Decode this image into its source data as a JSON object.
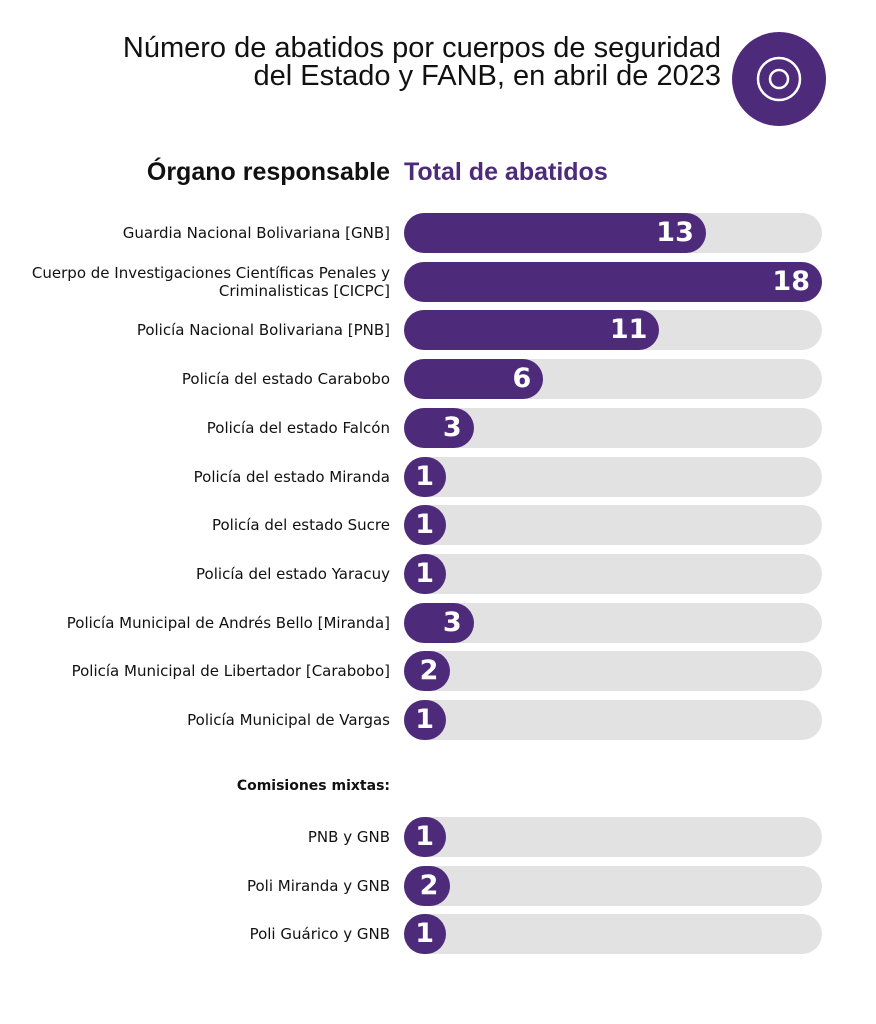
{
  "title": "Número de abatidos por cuerpos de seguridad del Estado y FANB, en abril de 2023",
  "icon": "target-circle-icon",
  "colors": {
    "bar": "#4e2a7b",
    "track": "#e2e2e2"
  },
  "chart_data": {
    "type": "bar",
    "orientation": "horizontal",
    "title": "Número de abatidos por cuerpos de seguridad del Estado y FANB, en abril de 2023",
    "category_header": "Órgano responsable",
    "value_header": "Total de abatidos",
    "xlim": [
      0,
      18
    ],
    "categories": [
      "Guardia Nacional Bolivariana [GNB]",
      "Cuerpo de Investigaciones Científicas Penales y Criminalisticas [CICPC]",
      "Policía Nacional Bolivariana [PNB]",
      "Policía del estado Carabobo",
      "Policía del estado Falcón",
      "Policía del estado Miranda",
      "Policía del estado Sucre",
      "Policía del estado Yaracuy",
      "Policía Municipal de Andrés Bello [Miranda]",
      "Policía Municipal de Libertador [Carabobo]",
      "Policía Municipal de Vargas"
    ],
    "values": [
      13,
      18,
      11,
      6,
      3,
      1,
      1,
      1,
      3,
      2,
      1
    ],
    "group_label": "Comisiones mixtas:",
    "group_categories": [
      "PNB y GNB",
      "Poli Miranda y GNB",
      "Poli Guárico y GNB"
    ],
    "group_values": [
      1,
      2,
      1
    ]
  }
}
